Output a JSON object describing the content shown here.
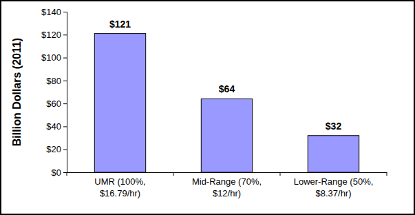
{
  "chart_data": {
    "type": "bar",
    "y_label": "Billion Dollars (2011)",
    "categories": [
      "UMR (100%, $16.79/hr)",
      "Mid-Range (70%, $12/hr)",
      "Lower-Range (50%, $8.37/hr)"
    ],
    "values": [
      121,
      64,
      32
    ],
    "value_labels": [
      "$121",
      "$64",
      "$32"
    ],
    "color": "#9999ff",
    "ylim": [
      0,
      140
    ],
    "yticks": [
      {
        "value": 0,
        "label": "$0"
      },
      {
        "value": 20,
        "label": "$20"
      },
      {
        "value": 40,
        "label": "$40"
      },
      {
        "value": 60,
        "label": "$60"
      },
      {
        "value": 80,
        "label": "$80"
      },
      {
        "value": 100,
        "label": "$100"
      },
      {
        "value": 120,
        "label": "$120"
      },
      {
        "value": 140,
        "label": "$140"
      }
    ],
    "data_labels": true,
    "grid": false
  }
}
